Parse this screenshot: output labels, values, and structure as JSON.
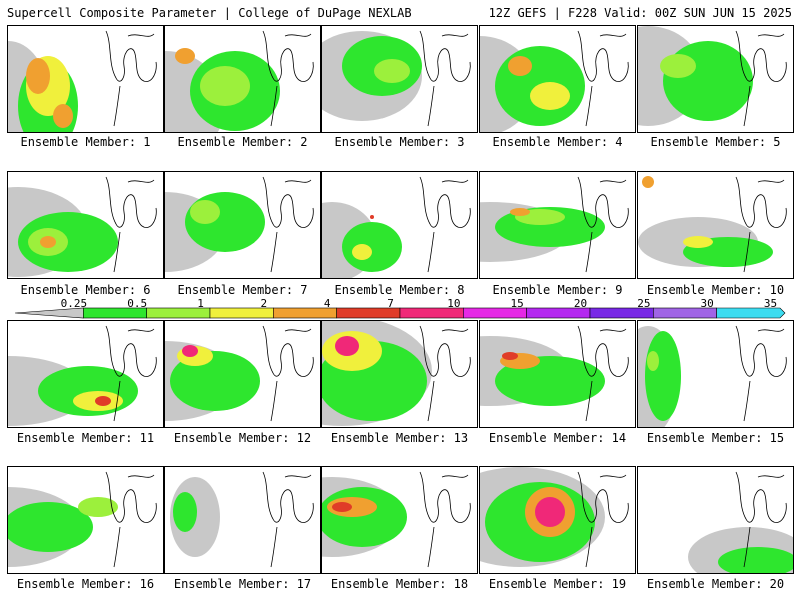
{
  "header": {
    "title": "Supercell Composite Parameter | College of DuPage NEXLAB",
    "run_info": "12Z GEFS | F228 Valid: 00Z SUN JUN 15 2025"
  },
  "colorbar": {
    "levels": [
      "0.25",
      "0.5",
      "1",
      "2",
      "4",
      "7",
      "10",
      "15",
      "20",
      "25",
      "30",
      "35"
    ],
    "colors": [
      "#c8c8c8",
      "#2ee62e",
      "#9cf03c",
      "#f0f03c",
      "#f0a030",
      "#e03c28",
      "#f02878",
      "#e628e6",
      "#b428f0",
      "#7828e6",
      "#a064e6",
      "#3cdcf0"
    ]
  },
  "panels": [
    {
      "label": "Ensemble Member: 1"
    },
    {
      "label": "Ensemble Member: 2"
    },
    {
      "label": "Ensemble Member: 3"
    },
    {
      "label": "Ensemble Member: 4"
    },
    {
      "label": "Ensemble Member: 5"
    },
    {
      "label": "Ensemble Member: 6"
    },
    {
      "label": "Ensemble Member: 7"
    },
    {
      "label": "Ensemble Member: 8"
    },
    {
      "label": "Ensemble Member: 9"
    },
    {
      "label": "Ensemble Member: 10"
    },
    {
      "label": "Ensemble Member: 11"
    },
    {
      "label": "Ensemble Member: 12"
    },
    {
      "label": "Ensemble Member: 13"
    },
    {
      "label": "Ensemble Member: 14"
    },
    {
      "label": "Ensemble Member: 15"
    },
    {
      "label": "Ensemble Member: 16"
    },
    {
      "label": "Ensemble Member: 17"
    },
    {
      "label": "Ensemble Member: 18"
    },
    {
      "label": "Ensemble Member: 19"
    },
    {
      "label": "Ensemble Member: 20"
    }
  ]
}
